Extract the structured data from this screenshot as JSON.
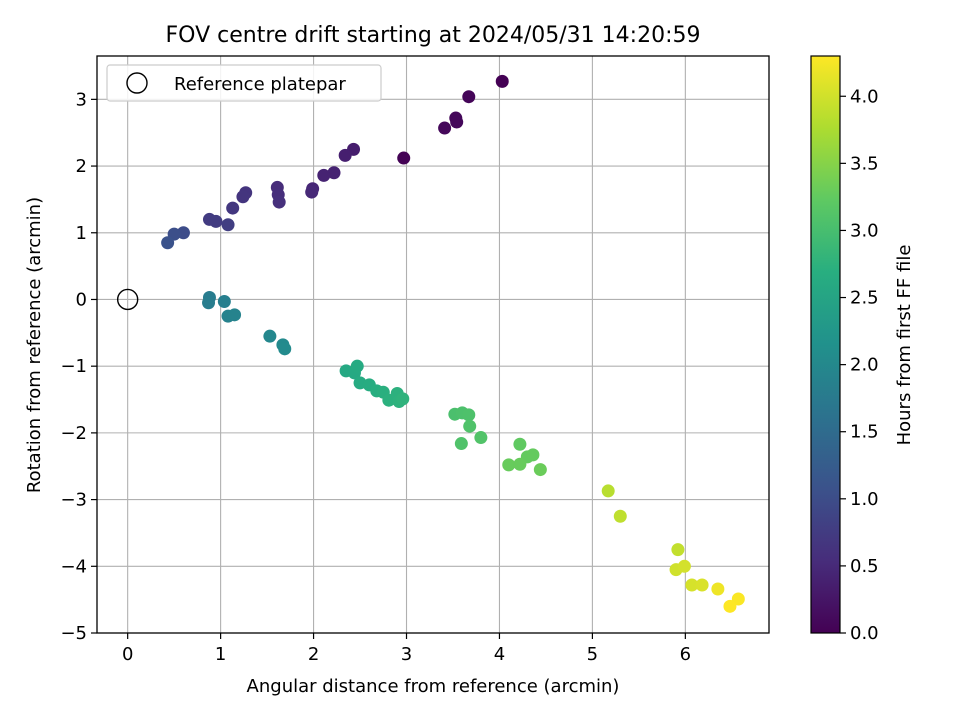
{
  "chart_data": {
    "type": "scatter",
    "title": "FOV centre drift starting at 2024/05/31 14:20:59",
    "xlabel": "Angular distance from reference (arcmin)",
    "ylabel": "Rotation from reference (arcmin)",
    "xlim": [
      -0.33,
      6.9
    ],
    "ylim": [
      -5.0,
      3.65
    ],
    "xticks": [
      0,
      1,
      2,
      3,
      4,
      5,
      6
    ],
    "yticks": [
      -5,
      -4,
      -3,
      -2,
      -1,
      0,
      1,
      2,
      3
    ],
    "xtick_labels": [
      "0",
      "1",
      "2",
      "3",
      "4",
      "5",
      "6"
    ],
    "ytick_labels": [
      "−5",
      "−4",
      "−3",
      "−2",
      "−1",
      "0",
      "1",
      "2",
      "3"
    ],
    "grid": true,
    "legend": {
      "position": "top-left",
      "entries": [
        "Reference platepar"
      ]
    },
    "reference_point": {
      "name": "Reference platepar",
      "x": 0,
      "y": 0
    },
    "colorbar": {
      "label": "Hours from first FF file",
      "colormap": "viridis",
      "range": [
        0.0,
        4.3
      ],
      "ticks": [
        0.0,
        0.5,
        1.0,
        1.5,
        2.0,
        2.5,
        3.0,
        3.5,
        4.0
      ],
      "tick_labels": [
        "0.0",
        "0.5",
        "1.0",
        "1.5",
        "2.0",
        "2.5",
        "3.0",
        "3.5",
        "4.0"
      ]
    },
    "points": [
      {
        "x": 4.03,
        "y": 3.27,
        "c": 0.0
      },
      {
        "x": 3.67,
        "y": 3.04,
        "c": 0.05
      },
      {
        "x": 3.53,
        "y": 2.72,
        "c": 0.07
      },
      {
        "x": 3.54,
        "y": 2.66,
        "c": 0.08
      },
      {
        "x": 3.41,
        "y": 2.57,
        "c": 0.09
      },
      {
        "x": 2.97,
        "y": 2.12,
        "c": 0.02
      },
      {
        "x": 2.43,
        "y": 2.25,
        "c": 0.35
      },
      {
        "x": 2.34,
        "y": 2.16,
        "c": 0.38
      },
      {
        "x": 2.22,
        "y": 1.9,
        "c": 0.42
      },
      {
        "x": 2.11,
        "y": 1.86,
        "c": 0.43
      },
      {
        "x": 1.99,
        "y": 1.66,
        "c": 0.48
      },
      {
        "x": 1.98,
        "y": 1.61,
        "c": 0.5
      },
      {
        "x": 1.61,
        "y": 1.68,
        "c": 0.55
      },
      {
        "x": 1.62,
        "y": 1.57,
        "c": 0.57
      },
      {
        "x": 1.63,
        "y": 1.46,
        "c": 0.6
      },
      {
        "x": 1.27,
        "y": 1.6,
        "c": 0.65
      },
      {
        "x": 1.24,
        "y": 1.54,
        "c": 0.67
      },
      {
        "x": 1.13,
        "y": 1.37,
        "c": 0.7
      },
      {
        "x": 0.88,
        "y": 1.2,
        "c": 0.75
      },
      {
        "x": 0.95,
        "y": 1.17,
        "c": 0.77
      },
      {
        "x": 1.08,
        "y": 1.12,
        "c": 0.8
      },
      {
        "x": 0.6,
        "y": 1.0,
        "c": 1.0
      },
      {
        "x": 0.5,
        "y": 0.98,
        "c": 1.05
      },
      {
        "x": 0.43,
        "y": 0.85,
        "c": 1.1
      },
      {
        "x": 0.88,
        "y": 0.03,
        "c": 1.8
      },
      {
        "x": 0.87,
        "y": -0.05,
        "c": 1.82
      },
      {
        "x": 1.04,
        "y": -0.03,
        "c": 1.85
      },
      {
        "x": 1.08,
        "y": -0.25,
        "c": 1.9
      },
      {
        "x": 1.15,
        "y": -0.23,
        "c": 1.92
      },
      {
        "x": 1.53,
        "y": -0.55,
        "c": 2.0
      },
      {
        "x": 1.67,
        "y": -0.68,
        "c": 2.05
      },
      {
        "x": 1.69,
        "y": -0.74,
        "c": 2.07
      },
      {
        "x": 2.35,
        "y": -1.07,
        "c": 2.6
      },
      {
        "x": 2.44,
        "y": -1.1,
        "c": 2.62
      },
      {
        "x": 2.47,
        "y": -1.0,
        "c": 2.63
      },
      {
        "x": 2.5,
        "y": -1.25,
        "c": 2.65
      },
      {
        "x": 2.6,
        "y": -1.28,
        "c": 2.67
      },
      {
        "x": 2.68,
        "y": -1.37,
        "c": 2.7
      },
      {
        "x": 2.75,
        "y": -1.39,
        "c": 2.72
      },
      {
        "x": 2.81,
        "y": -1.51,
        "c": 2.74
      },
      {
        "x": 2.9,
        "y": -1.41,
        "c": 2.75
      },
      {
        "x": 2.92,
        "y": -1.53,
        "c": 2.76
      },
      {
        "x": 2.96,
        "y": -1.49,
        "c": 2.78
      },
      {
        "x": 3.52,
        "y": -1.72,
        "c": 3.05
      },
      {
        "x": 3.6,
        "y": -1.7,
        "c": 3.07
      },
      {
        "x": 3.67,
        "y": -1.73,
        "c": 3.08
      },
      {
        "x": 3.68,
        "y": -1.9,
        "c": 3.1
      },
      {
        "x": 3.59,
        "y": -2.16,
        "c": 3.1
      },
      {
        "x": 3.8,
        "y": -2.07,
        "c": 3.12
      },
      {
        "x": 4.22,
        "y": -2.17,
        "c": 3.25
      },
      {
        "x": 4.3,
        "y": -2.36,
        "c": 3.27
      },
      {
        "x": 4.36,
        "y": -2.33,
        "c": 3.28
      },
      {
        "x": 4.1,
        "y": -2.48,
        "c": 3.3
      },
      {
        "x": 4.22,
        "y": -2.47,
        "c": 3.3
      },
      {
        "x": 4.44,
        "y": -2.55,
        "c": 3.32
      },
      {
        "x": 5.17,
        "y": -2.87,
        "c": 3.85
      },
      {
        "x": 5.3,
        "y": -3.25,
        "c": 3.9
      },
      {
        "x": 5.92,
        "y": -3.75,
        "c": 3.92
      },
      {
        "x": 5.9,
        "y": -4.05,
        "c": 4.0
      },
      {
        "x": 5.99,
        "y": -4.0,
        "c": 4.03
      },
      {
        "x": 6.07,
        "y": -4.28,
        "c": 4.05
      },
      {
        "x": 6.18,
        "y": -4.28,
        "c": 4.07
      },
      {
        "x": 6.35,
        "y": -4.34,
        "c": 4.2
      },
      {
        "x": 6.57,
        "y": -4.49,
        "c": 4.28
      },
      {
        "x": 6.48,
        "y": -4.6,
        "c": 4.3
      }
    ]
  }
}
